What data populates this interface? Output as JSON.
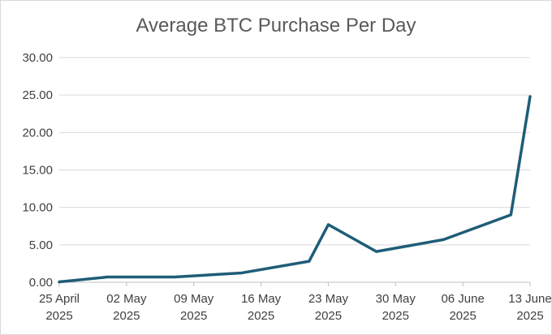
{
  "chart_data": {
    "type": "line",
    "title": "Average BTC Purchase Per Day",
    "xlabel": "",
    "ylabel": "",
    "ylim": [
      0,
      30
    ],
    "yticks": [
      "0.00",
      "5.00",
      "10.00",
      "15.00",
      "20.00",
      "25.00",
      "30.00"
    ],
    "xticks": [
      {
        "date": "2025-04-25",
        "line1": "25 April",
        "line2": "2025"
      },
      {
        "date": "2025-05-02",
        "line1": "02 May",
        "line2": "2025"
      },
      {
        "date": "2025-05-09",
        "line1": "09 May",
        "line2": "2025"
      },
      {
        "date": "2025-05-16",
        "line1": "16 May",
        "line2": "2025"
      },
      {
        "date": "2025-05-23",
        "line1": "23 May",
        "line2": "2025"
      },
      {
        "date": "2025-05-30",
        "line1": "30 May",
        "line2": "2025"
      },
      {
        "date": "2025-06-06",
        "line1": "06 June",
        "line2": "2025"
      },
      {
        "date": "2025-06-13",
        "line1": "13 June",
        "line2": "2025"
      }
    ],
    "xlim": [
      "2025-04-25",
      "2025-06-13"
    ],
    "grid": true,
    "legend": "none",
    "series": [
      {
        "color": "#1f5d78",
        "points": [
          {
            "x": "2025-04-25",
            "y": 0.05
          },
          {
            "x": "2025-04-30",
            "y": 0.7
          },
          {
            "x": "2025-05-07",
            "y": 0.7
          },
          {
            "x": "2025-05-14",
            "y": 1.25
          },
          {
            "x": "2025-05-21",
            "y": 2.8
          },
          {
            "x": "2025-05-23",
            "y": 7.7
          },
          {
            "x": "2025-05-28",
            "y": 4.1
          },
          {
            "x": "2025-06-04",
            "y": 5.7
          },
          {
            "x": "2025-06-11",
            "y": 9.0
          },
          {
            "x": "2025-06-13",
            "y": 24.8
          }
        ]
      }
    ]
  }
}
